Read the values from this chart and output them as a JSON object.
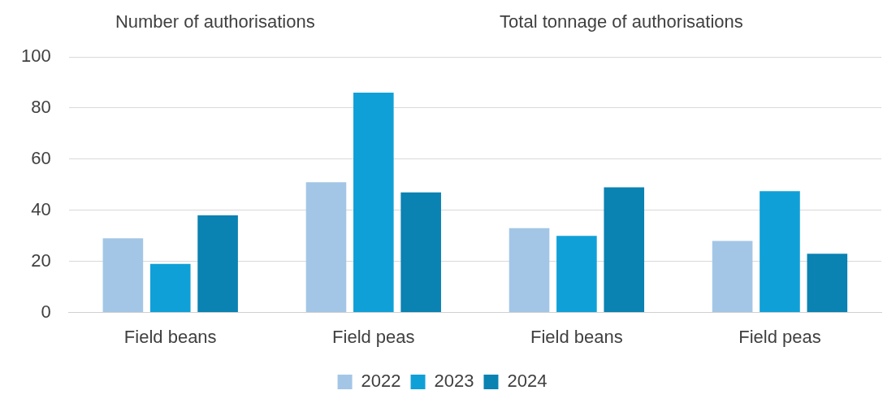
{
  "chart_data": {
    "type": "bar",
    "categories": [
      "Field beans",
      "Field peas",
      "Field beans",
      "Field peas"
    ],
    "series": [
      {
        "name": "2022",
        "color": "#a3c6e6",
        "values": [
          29,
          51,
          33,
          28
        ]
      },
      {
        "name": "2023",
        "color": "#10a0d8",
        "values": [
          19,
          86,
          30,
          47.5
        ]
      },
      {
        "name": "2024",
        "color": "#0a82b2",
        "values": [
          38,
          47,
          49,
          23
        ]
      }
    ],
    "annotations": [
      "Number of authorisations",
      "Total tonnage of authorisations"
    ],
    "ylim": [
      0,
      100
    ],
    "yticks": [
      0,
      20,
      40,
      60,
      80,
      100
    ],
    "grid": "y",
    "legend": "bottom"
  }
}
